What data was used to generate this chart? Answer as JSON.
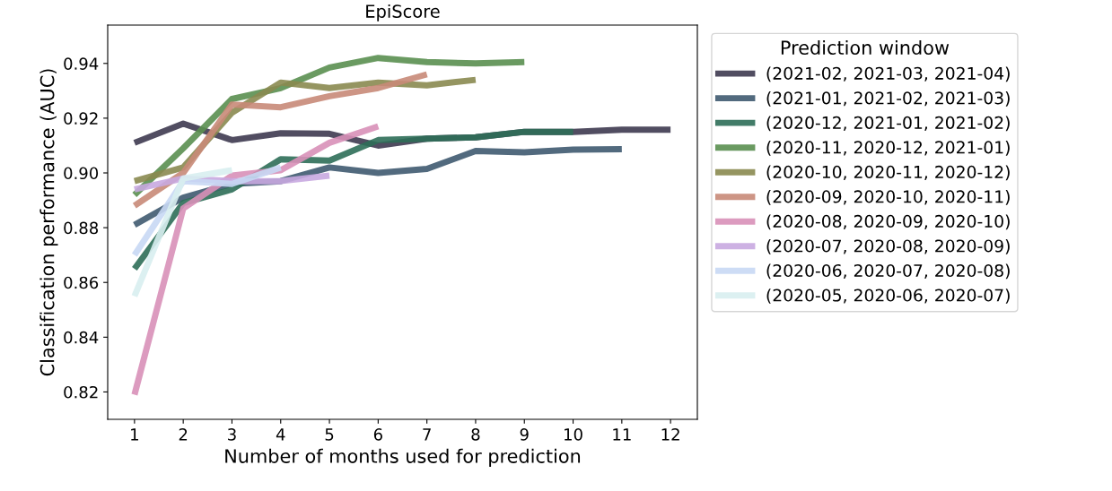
{
  "chart_data": {
    "type": "line",
    "title": "EpiScore",
    "xlabel": "Number of months used for prediction",
    "ylabel": "Classification performance (AUC)",
    "legend_title": "Prediction window",
    "legend": "right",
    "grid": false,
    "marker": "none",
    "line_style": "solid",
    "xlim": [
      0.45,
      12.55
    ],
    "xticks": [
      1,
      2,
      3,
      4,
      5,
      6,
      7,
      8,
      9,
      10,
      11,
      12
    ],
    "ylim": [
      0.81,
      0.954
    ],
    "yticks": [
      {
        "value": 0.82,
        "label": "0.82"
      },
      {
        "value": 0.84,
        "label": "0.84"
      },
      {
        "value": 0.86,
        "label": "0.86"
      },
      {
        "value": 0.88,
        "label": "0.88"
      },
      {
        "value": 0.9,
        "label": "0.90"
      },
      {
        "value": 0.92,
        "label": "0.92"
      },
      {
        "value": 0.94,
        "label": "0.94"
      }
    ],
    "series": [
      {
        "name": "(2021-02, 2021-03, 2021-04)",
        "color": "#3e3a50",
        "x": [
          1,
          2,
          3,
          4,
          5,
          6,
          7,
          8,
          9,
          10,
          11,
          12
        ],
        "values": [
          0.911,
          0.918,
          0.912,
          0.9145,
          0.9143,
          0.91,
          0.9125,
          0.913,
          0.915,
          0.915,
          0.9158,
          0.9158
        ]
      },
      {
        "name": "(2021-01, 2021-02, 2021-03)",
        "color": "#3f5a70",
        "x": [
          1,
          2,
          3,
          4,
          5,
          6,
          7,
          8,
          9,
          10,
          11
        ],
        "values": [
          0.881,
          0.891,
          0.896,
          0.897,
          0.902,
          0.9,
          0.9015,
          0.908,
          0.9075,
          0.9085,
          0.9087
        ]
      },
      {
        "name": "(2020-12, 2021-01, 2021-02)",
        "color": "#2e6e58",
        "x": [
          1,
          2,
          3,
          4,
          5,
          6,
          7,
          8,
          9,
          10
        ],
        "values": [
          0.865,
          0.889,
          0.894,
          0.905,
          0.9045,
          0.912,
          0.9125,
          0.913,
          0.915,
          0.915
        ]
      },
      {
        "name": "(2020-11, 2020-12, 2021-01)",
        "color": "#5a8f50",
        "x": [
          1,
          2,
          3,
          4,
          5,
          6,
          7,
          8,
          9
        ],
        "values": [
          0.892,
          0.909,
          0.927,
          0.931,
          0.9385,
          0.942,
          0.9405,
          0.94,
          0.9405
        ]
      },
      {
        "name": "(2020-10, 2020-11, 2020-12)",
        "color": "#8a8a50",
        "x": [
          1,
          2,
          3,
          4,
          5,
          6,
          7,
          8
        ],
        "values": [
          0.897,
          0.902,
          0.922,
          0.933,
          0.931,
          0.933,
          0.932,
          0.934
        ]
      },
      {
        "name": "(2020-09, 2020-10, 2020-11)",
        "color": "#c88a78",
        "x": [
          1,
          2,
          3,
          4,
          5,
          6,
          7
        ],
        "values": [
          0.888,
          0.9,
          0.925,
          0.924,
          0.928,
          0.931,
          0.936
        ]
      },
      {
        "name": "(2020-08, 2020-09, 2020-10)",
        "color": "#d890b8",
        "x": [
          1,
          2,
          3,
          4,
          5,
          6
        ],
        "values": [
          0.819,
          0.887,
          0.899,
          0.901,
          0.911,
          0.917
        ]
      },
      {
        "name": "(2020-07, 2020-08, 2020-09)",
        "color": "#c8a8e0",
        "x": [
          1,
          2,
          3,
          4,
          5
        ],
        "values": [
          0.894,
          0.898,
          0.897,
          0.897,
          0.899
        ]
      },
      {
        "name": "(2020-06, 2020-07, 2020-08)",
        "color": "#c8d8f4",
        "x": [
          1,
          2,
          3,
          4
        ],
        "values": [
          0.87,
          0.897,
          0.896,
          0.902
        ]
      },
      {
        "name": "(2020-05, 2020-06, 2020-07)",
        "color": "#d8eef0",
        "x": [
          1,
          2,
          3
        ],
        "values": [
          0.855,
          0.898,
          0.901
        ]
      }
    ]
  }
}
